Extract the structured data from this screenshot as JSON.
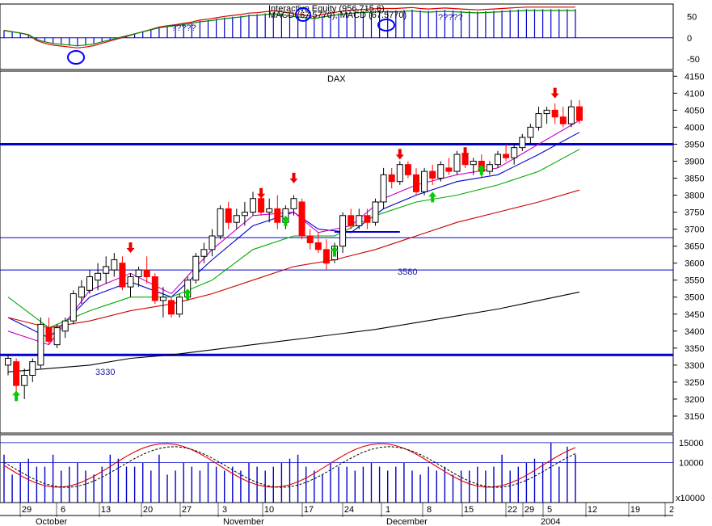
{
  "colors": {
    "up": "#ffffff",
    "down": "#ff0000",
    "ma_blue": "#0000cc",
    "ma_pink": "#cc00cc",
    "ma_green": "#00aa00",
    "ma_red": "#cc0000",
    "ma_black": "#000000",
    "support": "#0000cc",
    "arrow_up": "#00cc00",
    "arrow_down": "#ee0000",
    "histogram": "#0000cc"
  },
  "macd_panel": {
    "header_top": "Interactive Equity (956.715.6)",
    "header_bottom": "MACD (67.5770), MACD (67.5770)",
    "question_marks": [
      "?????",
      "?????"
    ],
    "y_ticks": [
      "50",
      "0",
      "-50"
    ],
    "ylim": [
      -75,
      80
    ]
  },
  "price_panel": {
    "title": "DAX",
    "y_ticks": [
      "4150",
      "4100",
      "4050",
      "4000",
      "3950",
      "3900",
      "3850",
      "3800",
      "3750",
      "3700",
      "3650",
      "3600",
      "3550",
      "3500",
      "3450",
      "3400",
      "3350",
      "3300",
      "3250",
      "3200",
      "3150"
    ],
    "ylim": [
      3100,
      4165
    ],
    "annotations": [
      "3580",
      "3330"
    ]
  },
  "volume_panel": {
    "y_ticks": [
      "15000",
      "10000"
    ],
    "unit_label": "x10000"
  },
  "x_axis": {
    "day_labels": [
      "29",
      "6",
      "13",
      "20",
      "27",
      "3",
      "10",
      "17",
      "24",
      "1",
      "8",
      "15",
      "22",
      "29",
      "5",
      "12",
      "19",
      "2"
    ],
    "month_labels": [
      "October",
      "November",
      "December",
      "2004"
    ]
  },
  "chart_data": {
    "type": "line",
    "title": "DAX",
    "candles": [
      [
        3300,
        3330,
        3270,
        3320
      ],
      [
        3310,
        3320,
        3210,
        3240
      ],
      [
        3240,
        3290,
        3200,
        3270
      ],
      [
        3270,
        3320,
        3250,
        3310
      ],
      [
        3300,
        3440,
        3290,
        3420
      ],
      [
        3410,
        3440,
        3360,
        3370
      ],
      [
        3360,
        3420,
        3350,
        3410
      ],
      [
        3400,
        3440,
        3380,
        3430
      ],
      [
        3430,
        3520,
        3420,
        3510
      ],
      [
        3500,
        3550,
        3480,
        3530
      ],
      [
        3520,
        3580,
        3510,
        3560
      ],
      [
        3550,
        3600,
        3520,
        3570
      ],
      [
        3570,
        3620,
        3540,
        3590
      ],
      [
        3580,
        3630,
        3560,
        3610
      ],
      [
        3600,
        3620,
        3520,
        3530
      ],
      [
        3530,
        3570,
        3500,
        3560
      ],
      [
        3560,
        3590,
        3530,
        3580
      ],
      [
        3580,
        3620,
        3540,
        3560
      ],
      [
        3560,
        3570,
        3480,
        3490
      ],
      [
        3490,
        3530,
        3440,
        3500
      ],
      [
        3490,
        3500,
        3440,
        3450
      ],
      [
        3450,
        3510,
        3440,
        3500
      ],
      [
        3500,
        3560,
        3490,
        3550
      ],
      [
        3550,
        3630,
        3540,
        3620
      ],
      [
        3620,
        3660,
        3600,
        3640
      ],
      [
        3640,
        3700,
        3620,
        3680
      ],
      [
        3680,
        3770,
        3670,
        3760
      ],
      [
        3760,
        3780,
        3700,
        3720
      ],
      [
        3720,
        3760,
        3700,
        3740
      ],
      [
        3740,
        3780,
        3710,
        3750
      ],
      [
        3750,
        3810,
        3740,
        3790
      ],
      [
        3790,
        3800,
        3740,
        3750
      ],
      [
        3750,
        3790,
        3720,
        3760
      ],
      [
        3760,
        3800,
        3700,
        3720
      ],
      [
        3720,
        3770,
        3700,
        3760
      ],
      [
        3760,
        3800,
        3740,
        3790
      ],
      [
        3780,
        3790,
        3670,
        3680
      ],
      [
        3680,
        3700,
        3640,
        3660
      ],
      [
        3660,
        3690,
        3630,
        3640
      ],
      [
        3640,
        3670,
        3580,
        3600
      ],
      [
        3610,
        3660,
        3600,
        3650
      ],
      [
        3650,
        3750,
        3630,
        3740
      ],
      [
        3740,
        3760,
        3700,
        3710
      ],
      [
        3710,
        3760,
        3700,
        3740
      ],
      [
        3740,
        3760,
        3700,
        3720
      ],
      [
        3720,
        3790,
        3710,
        3780
      ],
      [
        3780,
        3880,
        3760,
        3860
      ],
      [
        3860,
        3880,
        3820,
        3840
      ],
      [
        3840,
        3900,
        3830,
        3890
      ],
      [
        3890,
        3900,
        3850,
        3860
      ],
      [
        3860,
        3880,
        3800,
        3810
      ],
      [
        3810,
        3880,
        3800,
        3870
      ],
      [
        3870,
        3890,
        3830,
        3850
      ],
      [
        3850,
        3900,
        3840,
        3890
      ],
      [
        3880,
        3910,
        3860,
        3870
      ],
      [
        3870,
        3930,
        3860,
        3920
      ],
      [
        3920,
        3940,
        3880,
        3890
      ],
      [
        3890,
        3910,
        3860,
        3900
      ],
      [
        3900,
        3920,
        3850,
        3870
      ],
      [
        3870,
        3900,
        3860,
        3890
      ],
      [
        3890,
        3930,
        3880,
        3920
      ],
      [
        3920,
        3950,
        3900,
        3910
      ],
      [
        3910,
        3950,
        3890,
        3940
      ],
      [
        3940,
        3980,
        3930,
        3970
      ],
      [
        3970,
        4010,
        3950,
        4000
      ],
      [
        4000,
        4060,
        3990,
        4040
      ],
      [
        4040,
        4060,
        4010,
        4050
      ],
      [
        4050,
        4070,
        4010,
        4030
      ],
      [
        4030,
        4060,
        4000,
        4010
      ],
      [
        4010,
        4080,
        4000,
        4060
      ],
      [
        4060,
        4080,
        4010,
        4020
      ]
    ],
    "moving_averages": {
      "ma_blue": [
        [
          0,
          3440
        ],
        [
          5,
          3380
        ],
        [
          10,
          3500
        ],
        [
          15,
          3545
        ],
        [
          20,
          3500
        ],
        [
          25,
          3610
        ],
        [
          30,
          3710
        ],
        [
          35,
          3750
        ],
        [
          38,
          3700
        ],
        [
          42,
          3690
        ],
        [
          46,
          3760
        ],
        [
          50,
          3800
        ],
        [
          55,
          3840
        ],
        [
          60,
          3860
        ],
        [
          65,
          3920
        ],
        [
          70,
          3985
        ]
      ],
      "ma_pink": [
        [
          0,
          3400
        ],
        [
          5,
          3360
        ],
        [
          10,
          3520
        ],
        [
          15,
          3570
        ],
        [
          20,
          3510
        ],
        [
          25,
          3640
        ],
        [
          30,
          3740
        ],
        [
          35,
          3750
        ],
        [
          38,
          3690
        ],
        [
          42,
          3710
        ],
        [
          46,
          3790
        ],
        [
          50,
          3830
        ],
        [
          55,
          3860
        ],
        [
          60,
          3880
        ],
        [
          65,
          3950
        ],
        [
          70,
          4020
        ]
      ],
      "ma_green": [
        [
          0,
          3500
        ],
        [
          5,
          3410
        ],
        [
          10,
          3460
        ],
        [
          15,
          3500
        ],
        [
          20,
          3500
        ],
        [
          25,
          3550
        ],
        [
          30,
          3640
        ],
        [
          35,
          3680
        ],
        [
          40,
          3680
        ],
        [
          45,
          3740
        ],
        [
          50,
          3780
        ],
        [
          55,
          3800
        ],
        [
          60,
          3830
        ],
        [
          65,
          3870
        ],
        [
          70,
          3935
        ]
      ],
      "ma_red": [
        [
          0,
          3440
        ],
        [
          5,
          3410
        ],
        [
          10,
          3430
        ],
        [
          15,
          3460
        ],
        [
          20,
          3480
        ],
        [
          25,
          3510
        ],
        [
          30,
          3550
        ],
        [
          35,
          3590
        ],
        [
          40,
          3610
        ],
        [
          45,
          3640
        ],
        [
          50,
          3680
        ],
        [
          55,
          3720
        ],
        [
          60,
          3750
        ],
        [
          65,
          3780
        ],
        [
          70,
          3815
        ]
      ],
      "ma_black": [
        [
          0,
          3280
        ],
        [
          5,
          3290
        ],
        [
          10,
          3300
        ],
        [
          15,
          3320
        ],
        [
          20,
          3330
        ],
        [
          25,
          3345
        ],
        [
          30,
          3360
        ],
        [
          35,
          3375
        ],
        [
          40,
          3390
        ],
        [
          45,
          3405
        ],
        [
          50,
          3425
        ],
        [
          55,
          3445
        ],
        [
          60,
          3465
        ],
        [
          65,
          3490
        ],
        [
          70,
          3515
        ]
      ]
    },
    "support_lines": [
      3950,
      3330
    ],
    "thin_lines": [
      3675,
      3580
    ],
    "arrows_up": [
      [
        1,
        3225
      ],
      [
        22,
        3525
      ],
      [
        34,
        3740
      ],
      [
        40,
        3650
      ],
      [
        52,
        3810
      ],
      [
        58,
        3890
      ]
    ],
    "arrows_down": [
      [
        15,
        3630
      ],
      [
        31,
        3790
      ],
      [
        35,
        3835
      ],
      [
        48,
        3905
      ],
      [
        56,
        3910
      ],
      [
        67,
        4085
      ]
    ],
    "macd_histogram": [
      18,
      15,
      12,
      8,
      -4,
      -10,
      -14,
      -16,
      -18,
      -20,
      -18,
      -15,
      -10,
      -5,
      0,
      5,
      10,
      15,
      20,
      25,
      28,
      30,
      33,
      36,
      40,
      42,
      45,
      48,
      50,
      52,
      55,
      56,
      58,
      60,
      58,
      55,
      52,
      50,
      48,
      52,
      55,
      58,
      60,
      62,
      63,
      64,
      65,
      65,
      65,
      66,
      67,
      65,
      64,
      65,
      66,
      65,
      64,
      63,
      62,
      63,
      64,
      65,
      66,
      67,
      68,
      68,
      68,
      68,
      68,
      68,
      68
    ],
    "volume": [
      12,
      7,
      10,
      11,
      9,
      9,
      12,
      8,
      9,
      10,
      8,
      7,
      9,
      12,
      11,
      9,
      9,
      10,
      8,
      12,
      7,
      8,
      10,
      9,
      8,
      10,
      9,
      8,
      9,
      8,
      10,
      9,
      8,
      9,
      10,
      11,
      12,
      9,
      8,
      7,
      10,
      9,
      9,
      8,
      9,
      10,
      9,
      8,
      9,
      10,
      8,
      7,
      9,
      8,
      9,
      7,
      8,
      8,
      9,
      8,
      9,
      12,
      8,
      9,
      10,
      11,
      10,
      15,
      9,
      14,
      12
    ]
  }
}
